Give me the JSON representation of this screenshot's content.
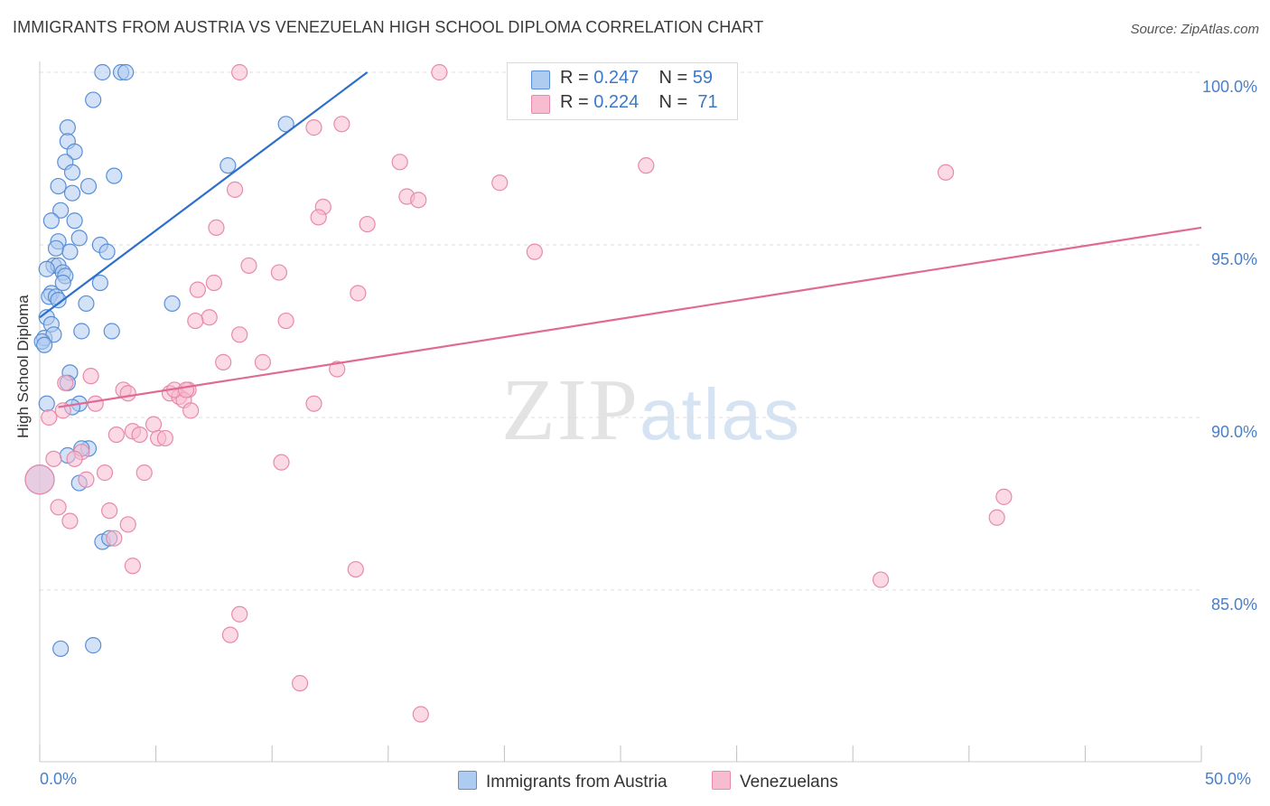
{
  "title": "IMMIGRANTS FROM AUSTRIA VS VENEZUELAN HIGH SCHOOL DIPLOMA CORRELATION CHART",
  "source": "Source: ZipAtlas.com",
  "watermark": {
    "zip": "ZIP",
    "atlas": "atlas"
  },
  "legend_top": {
    "rows": [
      {
        "r_label": "R = ",
        "r_value": "0.247",
        "n_label": "N = ",
        "n_value": "59"
      },
      {
        "r_label": "R = ",
        "r_value": "0.224",
        "n_label": "N = ",
        "n_value": "71"
      }
    ]
  },
  "legend_bottom": [
    "Immigrants from Austria",
    "Venezuelans"
  ],
  "colors": {
    "blue_fill": "#aecbf0",
    "blue_stroke": "#5a8fd6",
    "blue_line": "#2d6fca",
    "pink_fill": "#f7bcd0",
    "pink_stroke": "#e88aa9",
    "pink_line": "#e06a95",
    "tick_text": "#4a7fc9",
    "grid": "#dddddd"
  },
  "chart_data": {
    "type": "scatter",
    "title": "IMMIGRANTS FROM AUSTRIA VS VENEZUELAN HIGH SCHOOL DIPLOMA CORRELATION CHART",
    "xlabel": "",
    "ylabel": "High School Diploma",
    "xlim": [
      0,
      50
    ],
    "ylim": [
      80.5,
      100.5
    ],
    "x_tick_labels": [
      "0.0%",
      "50.0%"
    ],
    "y_ticks": [
      85,
      90,
      95,
      100
    ],
    "y_tick_labels": [
      "85.0%",
      "90.0%",
      "95.0%",
      "100.0%"
    ],
    "grid": true,
    "series": [
      {
        "name": "Immigrants from Austria",
        "color": "#aecbf0",
        "trend": {
          "x": [
            0.0,
            14.1
          ],
          "y": [
            92.9,
            100.0
          ]
        },
        "points": [
          [
            2.7,
            100.0
          ],
          [
            3.5,
            100.0
          ],
          [
            3.7,
            100.0
          ],
          [
            2.3,
            99.2
          ],
          [
            1.2,
            98.4
          ],
          [
            1.2,
            98.0
          ],
          [
            1.5,
            97.7
          ],
          [
            1.1,
            97.4
          ],
          [
            1.4,
            97.1
          ],
          [
            3.2,
            97.0
          ],
          [
            0.8,
            96.7
          ],
          [
            2.1,
            96.7
          ],
          [
            1.4,
            96.5
          ],
          [
            0.9,
            96.0
          ],
          [
            0.5,
            95.7
          ],
          [
            1.5,
            95.7
          ],
          [
            1.7,
            95.2
          ],
          [
            0.8,
            95.1
          ],
          [
            2.6,
            95.0
          ],
          [
            0.7,
            94.9
          ],
          [
            2.9,
            94.8
          ],
          [
            1.3,
            94.8
          ],
          [
            0.6,
            94.4
          ],
          [
            0.8,
            94.4
          ],
          [
            0.3,
            94.3
          ],
          [
            1.0,
            94.2
          ],
          [
            1.1,
            94.1
          ],
          [
            1.0,
            93.9
          ],
          [
            2.6,
            93.9
          ],
          [
            0.5,
            93.6
          ],
          [
            0.4,
            93.5
          ],
          [
            0.7,
            93.5
          ],
          [
            0.8,
            93.4
          ],
          [
            2.0,
            93.3
          ],
          [
            5.7,
            93.3
          ],
          [
            0.3,
            92.9
          ],
          [
            0.5,
            92.7
          ],
          [
            1.8,
            92.5
          ],
          [
            3.1,
            92.5
          ],
          [
            0.2,
            92.3
          ],
          [
            0.6,
            92.4
          ],
          [
            0.1,
            92.2
          ],
          [
            0.2,
            92.1
          ],
          [
            1.3,
            91.3
          ],
          [
            1.2,
            91.0
          ],
          [
            1.7,
            90.4
          ],
          [
            0.3,
            90.4
          ],
          [
            1.4,
            90.3
          ],
          [
            2.1,
            89.1
          ],
          [
            1.8,
            89.1
          ],
          [
            1.2,
            88.9
          ],
          [
            1.7,
            88.1
          ],
          [
            0.0,
            88.2
          ],
          [
            2.7,
            86.4
          ],
          [
            3.0,
            86.5
          ],
          [
            0.9,
            83.3
          ],
          [
            2.3,
            83.4
          ],
          [
            8.1,
            97.3
          ],
          [
            10.6,
            98.5
          ]
        ]
      },
      {
        "name": "Venezuelans",
        "color": "#f7bcd0",
        "trend": {
          "x": [
            0.8,
            50.0
          ],
          "y": [
            90.3,
            95.5
          ]
        },
        "points": [
          [
            8.6,
            100.0
          ],
          [
            17.2,
            100.0
          ],
          [
            11.8,
            98.4
          ],
          [
            13.0,
            98.5
          ],
          [
            15.5,
            97.4
          ],
          [
            26.1,
            97.3
          ],
          [
            39.0,
            97.1
          ],
          [
            19.8,
            96.8
          ],
          [
            8.4,
            96.6
          ],
          [
            15.8,
            96.4
          ],
          [
            16.3,
            96.3
          ],
          [
            12.2,
            96.1
          ],
          [
            12.0,
            95.8
          ],
          [
            14.1,
            95.6
          ],
          [
            7.6,
            95.5
          ],
          [
            21.3,
            94.8
          ],
          [
            9.0,
            94.4
          ],
          [
            10.3,
            94.2
          ],
          [
            7.5,
            93.9
          ],
          [
            6.8,
            93.7
          ],
          [
            13.7,
            93.6
          ],
          [
            7.3,
            92.9
          ],
          [
            10.6,
            92.8
          ],
          [
            6.7,
            92.8
          ],
          [
            8.6,
            92.4
          ],
          [
            9.6,
            91.6
          ],
          [
            7.9,
            91.6
          ],
          [
            12.8,
            91.4
          ],
          [
            2.2,
            91.2
          ],
          [
            1.1,
            91.0
          ],
          [
            6.4,
            90.8
          ],
          [
            5.6,
            90.7
          ],
          [
            3.6,
            90.8
          ],
          [
            6.0,
            90.6
          ],
          [
            6.2,
            90.5
          ],
          [
            3.8,
            90.7
          ],
          [
            2.4,
            90.4
          ],
          [
            11.8,
            90.4
          ],
          [
            1.0,
            90.2
          ],
          [
            6.5,
            90.2
          ],
          [
            0.4,
            90.0
          ],
          [
            4.9,
            89.8
          ],
          [
            4.0,
            89.6
          ],
          [
            4.3,
            89.5
          ],
          [
            5.1,
            89.4
          ],
          [
            5.4,
            89.4
          ],
          [
            3.3,
            89.5
          ],
          [
            1.8,
            89.0
          ],
          [
            1.5,
            88.8
          ],
          [
            0.6,
            88.8
          ],
          [
            10.4,
            88.7
          ],
          [
            2.8,
            88.4
          ],
          [
            4.5,
            88.4
          ],
          [
            2.0,
            88.2
          ],
          [
            0.0,
            88.2
          ],
          [
            0.8,
            87.4
          ],
          [
            3.0,
            87.3
          ],
          [
            1.3,
            87.0
          ],
          [
            3.8,
            86.9
          ],
          [
            4.0,
            85.7
          ],
          [
            13.6,
            85.6
          ],
          [
            3.2,
            86.5
          ],
          [
            8.6,
            84.3
          ],
          [
            8.2,
            83.7
          ],
          [
            11.2,
            82.3
          ],
          [
            16.4,
            81.4
          ],
          [
            36.2,
            85.3
          ],
          [
            41.5,
            87.7
          ],
          [
            41.2,
            87.1
          ],
          [
            5.8,
            90.8
          ],
          [
            6.3,
            90.8
          ]
        ]
      }
    ]
  }
}
